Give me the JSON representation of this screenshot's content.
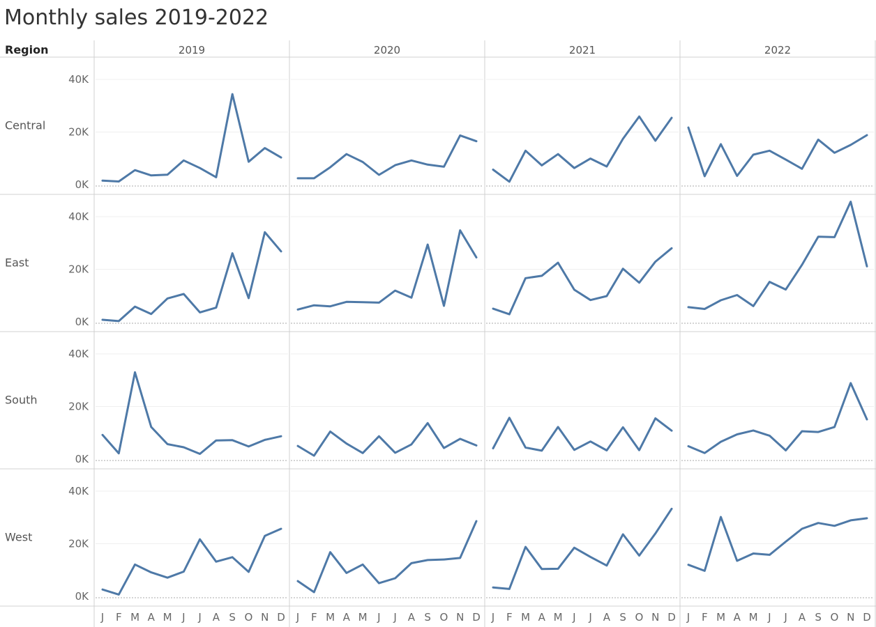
{
  "chart_data": {
    "type": "line",
    "title": "Monthly sales 2019-2022",
    "row_header": "Region",
    "columns": [
      "2019",
      "2020",
      "2021",
      "2022"
    ],
    "rows": [
      "Central",
      "East",
      "South",
      "West"
    ],
    "months": [
      "J",
      "F",
      "M",
      "A",
      "M",
      "J",
      "J",
      "A",
      "S",
      "O",
      "N",
      "D"
    ],
    "ylim": [
      0,
      47000
    ],
    "yticks": [
      0,
      20000,
      40000
    ],
    "ytick_labels": [
      "0K",
      "20K",
      "40K"
    ],
    "line_color": "#4e79a7",
    "grid": true,
    "series": {
      "Central": {
        "2019": [
          1500,
          1200,
          5500,
          3500,
          3800,
          9200,
          6300,
          2800,
          34400,
          8700,
          13900,
          10300
        ],
        "2020": [
          2400,
          2400,
          6600,
          11600,
          8600,
          3700,
          7400,
          9200,
          7600,
          6800,
          18700,
          16500
        ],
        "2021": [
          5700,
          1100,
          12900,
          7300,
          11600,
          6300,
          9900,
          6900,
          17400,
          25900,
          16700,
          25400
        ],
        "2022": [
          21700,
          3200,
          15400,
          3300,
          11400,
          12900,
          9500,
          6000,
          17100,
          12100,
          15100,
          18800
        ]
      },
      "East": {
        "2019": [
          800,
          300,
          5800,
          3000,
          8900,
          10600,
          3600,
          5400,
          26100,
          9000,
          34100,
          26800
        ],
        "2020": [
          4700,
          6300,
          5900,
          7600,
          7500,
          7300,
          11900,
          9200,
          29400,
          6100,
          34800,
          24500
        ],
        "2021": [
          5000,
          2900,
          16600,
          17500,
          22500,
          12200,
          8300,
          9800,
          20200,
          14900,
          22900,
          28000
        ],
        "2022": [
          5600,
          4900,
          8200,
          10200,
          6000,
          15200,
          12300,
          21700,
          32400,
          32200,
          45700,
          21100
        ]
      },
      "South": {
        "2019": [
          9200,
          2200,
          33000,
          12200,
          5700,
          4500,
          2000,
          7100,
          7200,
          4800,
          7300,
          8700
        ],
        "2020": [
          5000,
          1300,
          10500,
          5900,
          2300,
          8700,
          2400,
          5600,
          13700,
          4200,
          7700,
          5200
        ],
        "2021": [
          4100,
          15700,
          4400,
          3200,
          12200,
          3500,
          6700,
          3300,
          12100,
          3400,
          15500,
          10800
        ],
        "2022": [
          4900,
          2300,
          6600,
          9400,
          10900,
          8900,
          3300,
          10600,
          10300,
          12200,
          28900,
          15100
        ]
      },
      "West": {
        "2019": [
          2600,
          700,
          12100,
          9100,
          7100,
          9400,
          21700,
          13200,
          14900,
          9300,
          23000,
          25700
        ],
        "2020": [
          5800,
          1600,
          16800,
          8900,
          12100,
          5000,
          6900,
          12600,
          13800,
          14000,
          14600,
          28600
        ],
        "2021": [
          3400,
          2800,
          18800,
          10400,
          10500,
          18500,
          15000,
          11700,
          23600,
          15500,
          23900,
          33300
        ],
        "2022": [
          12000,
          9700,
          30200,
          13500,
          16300,
          15800,
          20800,
          25700,
          27900,
          26800,
          28900,
          29700
        ]
      }
    }
  }
}
